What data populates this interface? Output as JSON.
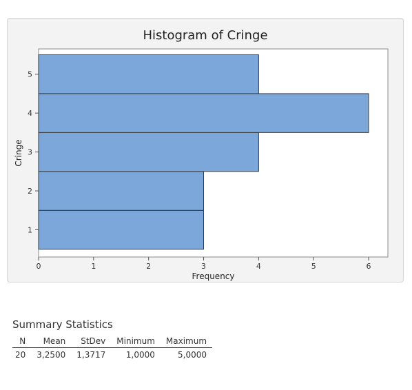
{
  "chart_data": {
    "type": "bar",
    "orientation": "horizontal",
    "title": "Histogram of Cringe",
    "xlabel": "Frequency",
    "ylabel": "Cringe",
    "categories": [
      "1",
      "2",
      "3",
      "4",
      "5"
    ],
    "values": [
      3,
      3,
      4,
      6,
      4
    ],
    "xlim": [
      0,
      6.35
    ],
    "ylim": [
      0.3,
      5.65
    ],
    "xticks": [
      "0",
      "1",
      "2",
      "3",
      "4",
      "5",
      "6"
    ],
    "yticks": [
      "1",
      "2",
      "3",
      "4",
      "5"
    ],
    "grid": false,
    "colors": {
      "bar_fill": "#7ba7da",
      "bar_stroke": "#3a3a3a",
      "panel_bg": "#f3f3f3",
      "plot_bg": "#ffffff"
    }
  },
  "summary": {
    "title": "Summary Statistics",
    "headers": [
      "N",
      "Mean",
      "StDev",
      "Minimum",
      "Maximum"
    ],
    "row": [
      "20",
      "3,2500",
      "1,3717",
      "1,0000",
      "5,0000"
    ]
  }
}
